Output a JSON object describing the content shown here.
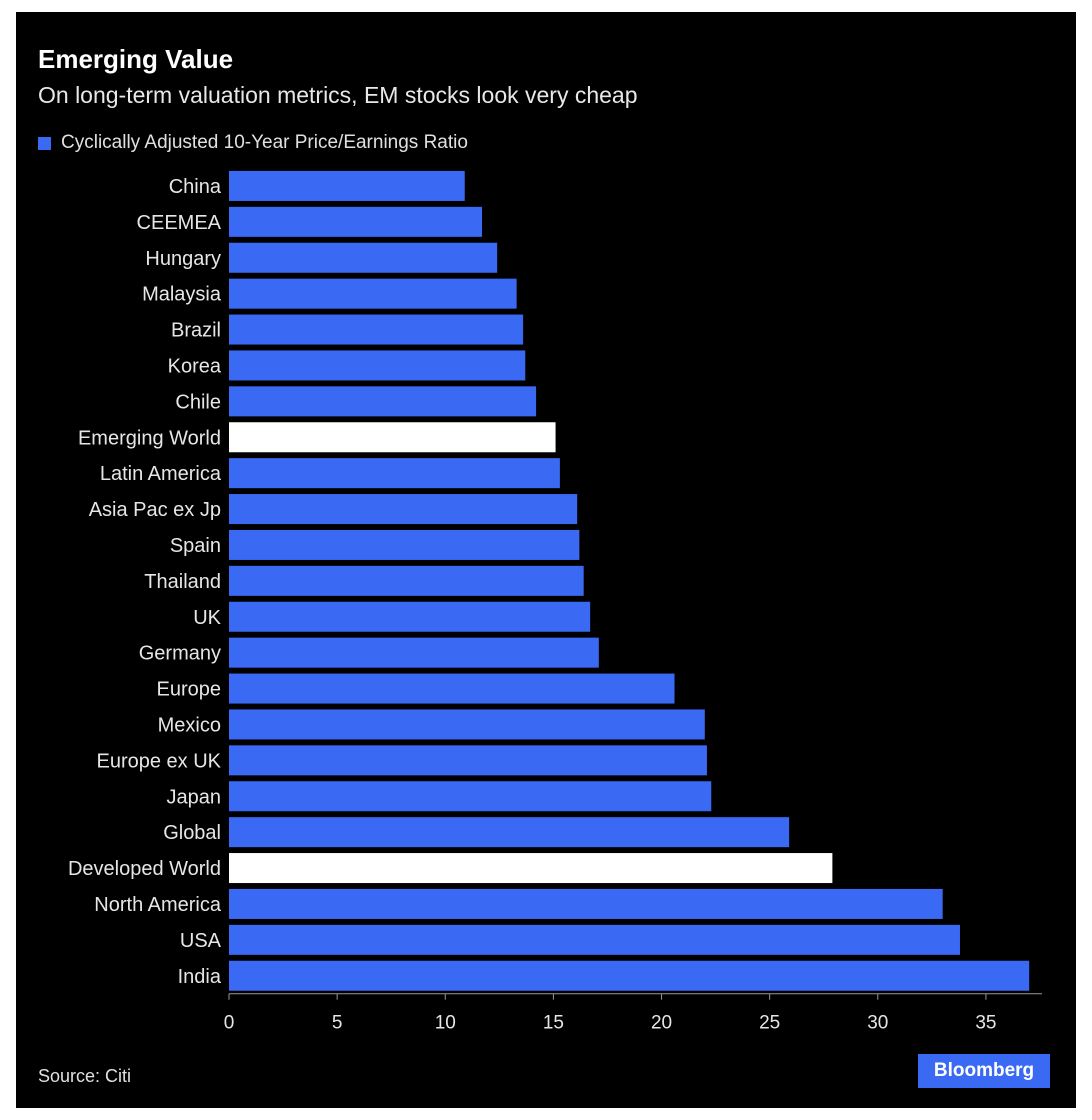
{
  "colors": {
    "background": "#000000",
    "bar": "#3a6af3",
    "highlight": "#ffffff",
    "text": "#e6e6e6",
    "brand": "#3a6af3"
  },
  "header": {
    "title": "Emerging Value",
    "subtitle": "On long-term valuation metrics, EM stocks look very cheap"
  },
  "footer": {
    "source": "Source: Citi",
    "brand": "Bloomberg"
  },
  "chart_data": {
    "type": "bar",
    "orientation": "horizontal",
    "title": "Emerging Value",
    "subtitle": "On long-term valuation metrics, EM stocks look very cheap",
    "legend": [
      "Cyclically Adjusted 10-Year Price/Earnings Ratio"
    ],
    "legend_position": "top-left",
    "xlabel": "",
    "ylabel": "",
    "xlim": [
      0,
      37.5
    ],
    "xticks": [
      0,
      5,
      10,
      15,
      20,
      25,
      30,
      35
    ],
    "grid": false,
    "categories": [
      "China",
      "CEEMEA",
      "Hungary",
      "Malaysia",
      "Brazil",
      "Korea",
      "Chile",
      "Emerging World",
      "Latin America",
      "Asia Pac ex Jp",
      "Spain",
      "Thailand",
      "UK",
      "Germany",
      "Europe",
      "Mexico",
      "Europe ex UK",
      "Japan",
      "Global",
      "Developed World",
      "North America",
      "USA",
      "India"
    ],
    "values": [
      10.9,
      11.7,
      12.4,
      13.3,
      13.6,
      13.7,
      14.2,
      15.1,
      15.3,
      16.1,
      16.2,
      16.4,
      16.7,
      17.1,
      20.6,
      22.0,
      22.1,
      22.3,
      25.9,
      27.9,
      33.0,
      33.8,
      37.0
    ],
    "highlighted": [
      "Emerging World",
      "Developed World"
    ]
  }
}
